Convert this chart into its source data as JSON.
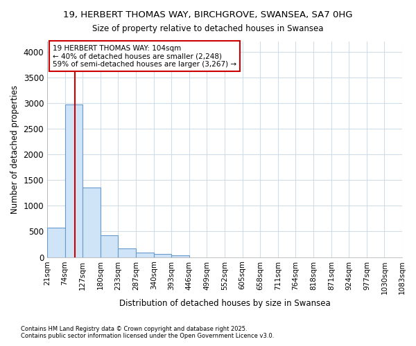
{
  "title_line1": "19, HERBERT THOMAS WAY, BIRCHGROVE, SWANSEA, SA7 0HG",
  "title_line2": "Size of property relative to detached houses in Swansea",
  "xlabel": "Distribution of detached houses by size in Swansea",
  "ylabel": "Number of detached properties",
  "bin_edges": [
    21,
    74,
    127,
    180,
    233,
    287,
    340,
    393,
    446,
    499,
    552,
    605,
    658,
    711,
    764,
    818,
    871,
    924,
    977,
    1030,
    1083
  ],
  "bar_heights": [
    580,
    2980,
    1350,
    430,
    175,
    95,
    55,
    40,
    0,
    0,
    0,
    0,
    0,
    0,
    0,
    0,
    0,
    0,
    0,
    0
  ],
  "bar_color": "#d0e4f7",
  "bar_edge_color": "#6699cc",
  "property_size": 104,
  "annotation_text": "19 HERBERT THOMAS WAY: 104sqm\n← 40% of detached houses are smaller (2,248)\n59% of semi-detached houses are larger (3,267) →",
  "annotation_box_color": "#cc0000",
  "vline_color": "#cc0000",
  "ylim": [
    0,
    4200
  ],
  "yticks": [
    0,
    500,
    1000,
    1500,
    2000,
    2500,
    3000,
    3500,
    4000
  ],
  "background_color": "#ffffff",
  "grid_color": "#d0dce8",
  "footnote1": "Contains HM Land Registry data © Crown copyright and database right 2025.",
  "footnote2": "Contains public sector information licensed under the Open Government Licence v3.0."
}
